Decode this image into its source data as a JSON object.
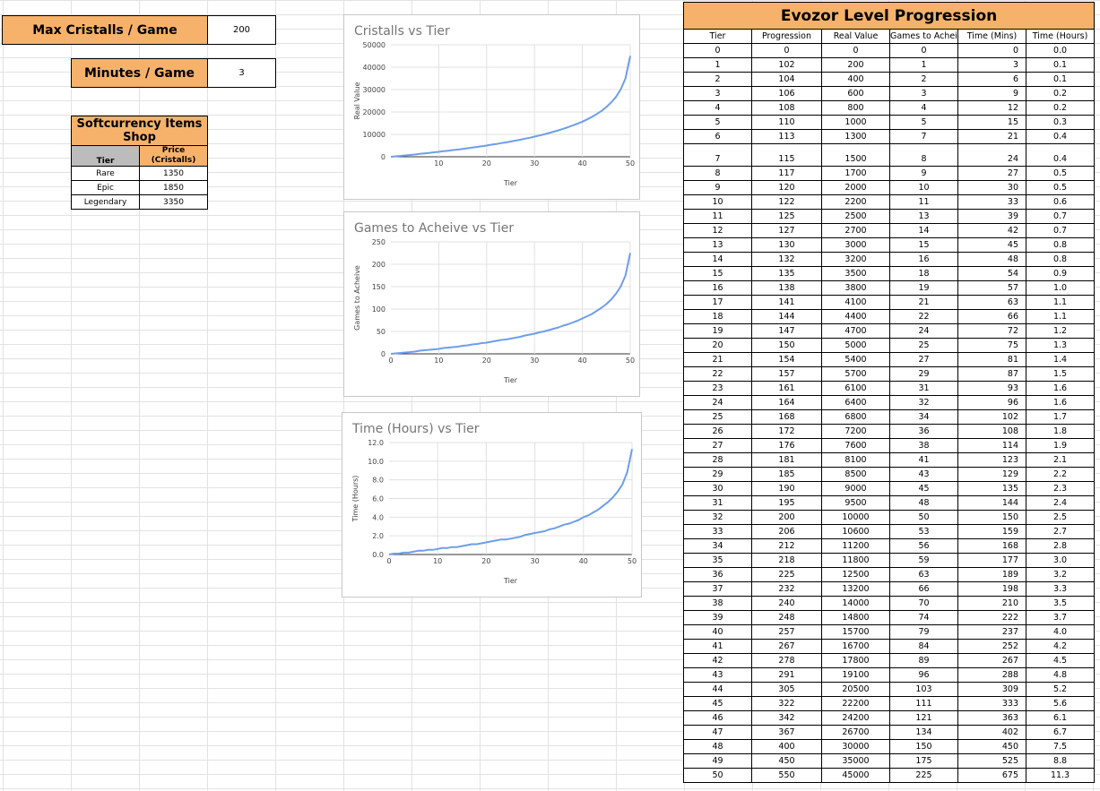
{
  "settings": {
    "max_label": "Max Cristalls / Game",
    "max_value": "200",
    "min_label": "Minutes / Game",
    "min_value": "3"
  },
  "shop": {
    "title": "Softcurrency Items Shop",
    "col_tier": "Tier",
    "col_price": "Price (Cristalls)",
    "rows": [
      {
        "tier": "Rare",
        "price": "1350"
      },
      {
        "tier": "Epic",
        "price": "1850"
      },
      {
        "tier": "Legendary",
        "price": "3350"
      }
    ]
  },
  "progression": {
    "title": "Evozor Level Progression",
    "headers": [
      "Tier",
      "Progression",
      "Real Value",
      "Games to Acheive",
      "Time (Mins)",
      "Time (Hours)"
    ],
    "rows": [
      [
        "0",
        "0",
        "0",
        "0",
        "0",
        "0.0"
      ],
      [
        "1",
        "102",
        "200",
        "1",
        "3",
        "0.1"
      ],
      [
        "2",
        "104",
        "400",
        "2",
        "6",
        "0.1"
      ],
      [
        "3",
        "106",
        "600",
        "3",
        "9",
        "0.2"
      ],
      [
        "4",
        "108",
        "800",
        "4",
        "12",
        "0.2"
      ],
      [
        "5",
        "110",
        "1000",
        "5",
        "15",
        "0.3"
      ],
      [
        "6",
        "113",
        "1300",
        "7",
        "21",
        "0.4"
      ],
      [
        "7",
        "115",
        "1500",
        "8",
        "24",
        "0.4"
      ],
      [
        "8",
        "117",
        "1700",
        "9",
        "27",
        "0.5"
      ],
      [
        "9",
        "120",
        "2000",
        "10",
        "30",
        "0.5"
      ],
      [
        "10",
        "122",
        "2200",
        "11",
        "33",
        "0.6"
      ],
      [
        "11",
        "125",
        "2500",
        "13",
        "39",
        "0.7"
      ],
      [
        "12",
        "127",
        "2700",
        "14",
        "42",
        "0.7"
      ],
      [
        "13",
        "130",
        "3000",
        "15",
        "45",
        "0.8"
      ],
      [
        "14",
        "132",
        "3200",
        "16",
        "48",
        "0.8"
      ],
      [
        "15",
        "135",
        "3500",
        "18",
        "54",
        "0.9"
      ],
      [
        "16",
        "138",
        "3800",
        "19",
        "57",
        "1.0"
      ],
      [
        "17",
        "141",
        "4100",
        "21",
        "63",
        "1.1"
      ],
      [
        "18",
        "144",
        "4400",
        "22",
        "66",
        "1.1"
      ],
      [
        "19",
        "147",
        "4700",
        "24",
        "72",
        "1.2"
      ],
      [
        "20",
        "150",
        "5000",
        "25",
        "75",
        "1.3"
      ],
      [
        "21",
        "154",
        "5400",
        "27",
        "81",
        "1.4"
      ],
      [
        "22",
        "157",
        "5700",
        "29",
        "87",
        "1.5"
      ],
      [
        "23",
        "161",
        "6100",
        "31",
        "93",
        "1.6"
      ],
      [
        "24",
        "164",
        "6400",
        "32",
        "96",
        "1.6"
      ],
      [
        "25",
        "168",
        "6800",
        "34",
        "102",
        "1.7"
      ],
      [
        "26",
        "172",
        "7200",
        "36",
        "108",
        "1.8"
      ],
      [
        "27",
        "176",
        "7600",
        "38",
        "114",
        "1.9"
      ],
      [
        "28",
        "181",
        "8100",
        "41",
        "123",
        "2.1"
      ],
      [
        "29",
        "185",
        "8500",
        "43",
        "129",
        "2.2"
      ],
      [
        "30",
        "190",
        "9000",
        "45",
        "135",
        "2.3"
      ],
      [
        "31",
        "195",
        "9500",
        "48",
        "144",
        "2.4"
      ],
      [
        "32",
        "200",
        "10000",
        "50",
        "150",
        "2.5"
      ],
      [
        "33",
        "206",
        "10600",
        "53",
        "159",
        "2.7"
      ],
      [
        "34",
        "212",
        "11200",
        "56",
        "168",
        "2.8"
      ],
      [
        "35",
        "218",
        "11800",
        "59",
        "177",
        "3.0"
      ],
      [
        "36",
        "225",
        "12500",
        "63",
        "189",
        "3.2"
      ],
      [
        "37",
        "232",
        "13200",
        "66",
        "198",
        "3.3"
      ],
      [
        "38",
        "240",
        "14000",
        "70",
        "210",
        "3.5"
      ],
      [
        "39",
        "248",
        "14800",
        "74",
        "222",
        "3.7"
      ],
      [
        "40",
        "257",
        "15700",
        "79",
        "237",
        "4.0"
      ],
      [
        "41",
        "267",
        "16700",
        "84",
        "252",
        "4.2"
      ],
      [
        "42",
        "278",
        "17800",
        "89",
        "267",
        "4.5"
      ],
      [
        "43",
        "291",
        "19100",
        "96",
        "288",
        "4.8"
      ],
      [
        "44",
        "305",
        "20500",
        "103",
        "309",
        "5.2"
      ],
      [
        "45",
        "322",
        "22200",
        "111",
        "333",
        "5.6"
      ],
      [
        "46",
        "342",
        "24200",
        "121",
        "363",
        "6.1"
      ],
      [
        "47",
        "367",
        "26700",
        "134",
        "402",
        "6.7"
      ],
      [
        "48",
        "400",
        "30000",
        "150",
        "450",
        "7.5"
      ],
      [
        "49",
        "450",
        "35000",
        "175",
        "525",
        "8.8"
      ],
      [
        "50",
        "550",
        "45000",
        "225",
        "675",
        "11.3"
      ]
    ]
  },
  "chart_data": [
    {
      "type": "line",
      "title": "Cristalls vs Tier",
      "xlabel": "Tier",
      "ylabel": "Real Value",
      "xlim": [
        0,
        50
      ],
      "ylim": [
        0,
        50000
      ],
      "xticks": [
        "10",
        "20",
        "30",
        "40",
        "50"
      ],
      "yticks": [
        "0",
        "10000",
        "20000",
        "30000",
        "40000",
        "50000"
      ],
      "x": [
        0,
        1,
        2,
        3,
        4,
        5,
        6,
        7,
        8,
        9,
        10,
        11,
        12,
        13,
        14,
        15,
        16,
        17,
        18,
        19,
        20,
        21,
        22,
        23,
        24,
        25,
        26,
        27,
        28,
        29,
        30,
        31,
        32,
        33,
        34,
        35,
        36,
        37,
        38,
        39,
        40,
        41,
        42,
        43,
        44,
        45,
        46,
        47,
        48,
        49,
        50
      ],
      "series": [
        {
          "values": [
            0,
            200,
            400,
            600,
            800,
            1000,
            1300,
            1500,
            1700,
            2000,
            2200,
            2500,
            2700,
            3000,
            3200,
            3500,
            3800,
            4100,
            4400,
            4700,
            5000,
            5400,
            5700,
            6100,
            6400,
            6800,
            7200,
            7600,
            8100,
            8500,
            9000,
            9500,
            10000,
            10600,
            11200,
            11800,
            12500,
            13200,
            14000,
            14800,
            15700,
            16700,
            17800,
            19100,
            20500,
            22200,
            24200,
            26700,
            30000,
            35000,
            45000
          ]
        }
      ],
      "color": "#6d9eeb",
      "grid": true
    },
    {
      "type": "line",
      "title": "Games to Acheive vs Tier",
      "xlabel": "Tier",
      "ylabel": "Games to Acheive",
      "xlim": [
        0,
        50
      ],
      "ylim": [
        0,
        250
      ],
      "xticks": [
        "0",
        "10",
        "20",
        "30",
        "40",
        "50"
      ],
      "yticks": [
        "0",
        "50",
        "100",
        "150",
        "200",
        "250"
      ],
      "x": [
        0,
        1,
        2,
        3,
        4,
        5,
        6,
        7,
        8,
        9,
        10,
        11,
        12,
        13,
        14,
        15,
        16,
        17,
        18,
        19,
        20,
        21,
        22,
        23,
        24,
        25,
        26,
        27,
        28,
        29,
        30,
        31,
        32,
        33,
        34,
        35,
        36,
        37,
        38,
        39,
        40,
        41,
        42,
        43,
        44,
        45,
        46,
        47,
        48,
        49,
        50
      ],
      "series": [
        {
          "values": [
            0,
            1,
            2,
            3,
            4,
            5,
            7,
            8,
            9,
            10,
            11,
            13,
            14,
            15,
            16,
            18,
            19,
            21,
            22,
            24,
            25,
            27,
            29,
            31,
            32,
            34,
            36,
            38,
            41,
            43,
            45,
            48,
            50,
            53,
            56,
            59,
            63,
            66,
            70,
            74,
            79,
            84,
            89,
            96,
            103,
            111,
            121,
            134,
            150,
            175,
            225
          ]
        }
      ],
      "color": "#6d9eeb",
      "grid": true
    },
    {
      "type": "line",
      "title": "Time (Hours) vs Tier",
      "xlabel": "Tier",
      "ylabel": "Time (Hours)",
      "xlim": [
        0,
        50
      ],
      "ylim": [
        0,
        12
      ],
      "xticks": [
        "0",
        "10",
        "20",
        "30",
        "40",
        "50"
      ],
      "yticks": [
        "0.0",
        "2.0",
        "4.0",
        "6.0",
        "8.0",
        "10.0",
        "12.0"
      ],
      "x": [
        0,
        1,
        2,
        3,
        4,
        5,
        6,
        7,
        8,
        9,
        10,
        11,
        12,
        13,
        14,
        15,
        16,
        17,
        18,
        19,
        20,
        21,
        22,
        23,
        24,
        25,
        26,
        27,
        28,
        29,
        30,
        31,
        32,
        33,
        34,
        35,
        36,
        37,
        38,
        39,
        40,
        41,
        42,
        43,
        44,
        45,
        46,
        47,
        48,
        49,
        50
      ],
      "series": [
        {
          "values": [
            0,
            0.1,
            0.1,
            0.2,
            0.2,
            0.3,
            0.4,
            0.4,
            0.5,
            0.5,
            0.6,
            0.7,
            0.7,
            0.8,
            0.8,
            0.9,
            1.0,
            1.1,
            1.1,
            1.2,
            1.3,
            1.4,
            1.5,
            1.6,
            1.6,
            1.7,
            1.8,
            1.9,
            2.1,
            2.2,
            2.3,
            2.4,
            2.5,
            2.7,
            2.8,
            3.0,
            3.2,
            3.3,
            3.5,
            3.7,
            4.0,
            4.2,
            4.5,
            4.8,
            5.2,
            5.6,
            6.1,
            6.7,
            7.5,
            8.8,
            11.3
          ]
        }
      ],
      "color": "#6d9eeb",
      "grid": true
    }
  ]
}
